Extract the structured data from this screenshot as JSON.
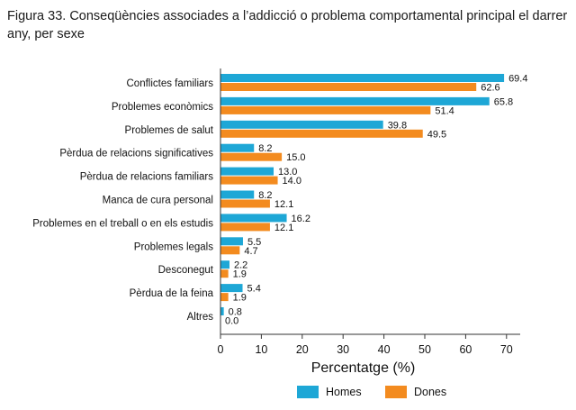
{
  "figure": {
    "title": "Figura 33. Conseqüències associades a l’addicció o problema comportamental principal el darrer any, per sexe"
  },
  "colors": {
    "homes": "#1ea7d6",
    "dones": "#f38b1f",
    "axis": "#333333",
    "text": "#111111"
  },
  "chart_data": {
    "type": "bar",
    "orientation": "horizontal",
    "title": "Figura 33. Conseqüències associades a l’addicció o problema comportamental principal el darrer any, per sexe",
    "xlabel": "Percentatge (%)",
    "ylabel": "",
    "xlim": [
      0,
      70
    ],
    "xticks": [
      0,
      10,
      20,
      30,
      40,
      50,
      60,
      70
    ],
    "categories": [
      "Conflictes familiars",
      "Problemes econòmics",
      "Problemes de salut",
      "Pèrdua de relacions significatives",
      "Pèrdua de relacions familiars",
      "Manca de cura personal",
      "Problemes en el treball o en els estudis",
      "Problemes legals",
      "Desconegut",
      "Pèrdua de la feina",
      "Altres"
    ],
    "series": [
      {
        "name": "Homes",
        "values": [
          69.4,
          65.8,
          39.8,
          8.2,
          13.0,
          8.2,
          16.2,
          5.5,
          2.2,
          5.4,
          0.8
        ]
      },
      {
        "name": "Dones",
        "values": [
          62.6,
          51.4,
          49.5,
          15.0,
          14.0,
          12.1,
          12.1,
          4.7,
          1.9,
          1.9,
          0.0
        ]
      }
    ],
    "legend_position": "bottom",
    "grid": false
  }
}
